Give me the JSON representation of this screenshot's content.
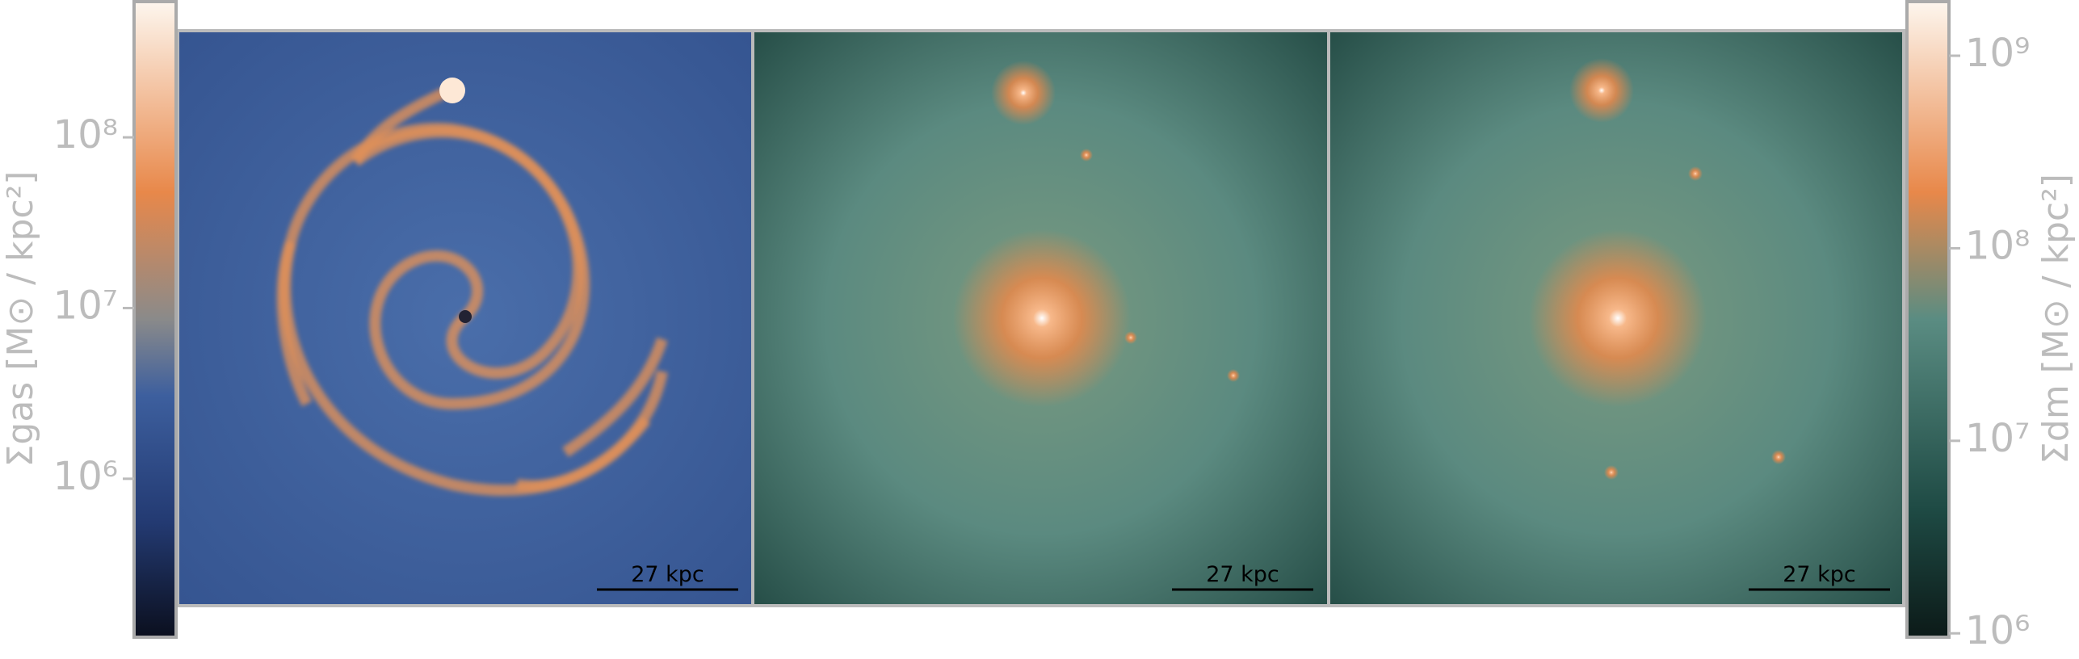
{
  "colorbars": [
    {
      "label": "Σgas [M⊙ / kpc²]",
      "lim": [
        118000,
        624000000
      ],
      "ticks": [
        {
          "value": 1000000,
          "label": "10⁶"
        },
        {
          "value": 10000000,
          "label": "10⁷"
        },
        {
          "value": 100000000,
          "label": "10⁸"
        }
      ]
    },
    {
      "label": "Σdm [M⊙ / kpc²]",
      "lim": [
        955000,
        1910000000
      ],
      "ticks": [
        {
          "value": 1000000,
          "label": "10⁶"
        },
        {
          "value": 10000000,
          "label": "10⁷"
        },
        {
          "value": 100000000,
          "label": "10⁸"
        },
        {
          "value": 1000000000,
          "label": "10⁹"
        }
      ]
    }
  ],
  "panels": [
    {
      "scale_bar": "27 kpc"
    },
    {
      "scale_bar": "27 kpc"
    },
    {
      "scale_bar": "27 kpc"
    }
  ]
}
